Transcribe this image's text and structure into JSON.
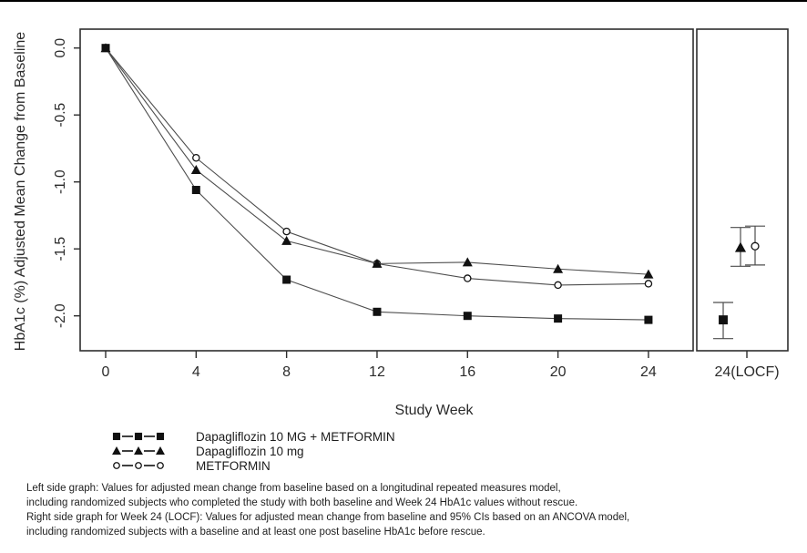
{
  "chart_data": {
    "type": "line",
    "title": "",
    "xlabel": "Study Week",
    "ylabel": "HbA1c (%) Adjusted Mean Change from Baseline",
    "x": [
      0,
      4,
      8,
      12,
      16,
      20,
      24
    ],
    "x_tick_labels": [
      "0",
      "4",
      "8",
      "12",
      "16",
      "20",
      "24"
    ],
    "locf_tick_label": "24(LOCF)",
    "y_ticks": [
      0.0,
      -0.5,
      -1.0,
      -1.5,
      -2.0
    ],
    "y_tick_labels": [
      "0.0",
      "-0.5",
      "-1.0",
      "-1.5",
      "-2.0"
    ],
    "ylim": [
      -2.26,
      0.14
    ],
    "grid": false,
    "legend_position": "bottom-left",
    "panels": [
      "longitudinal (weeks 0-24)",
      "Week 24 LOCF with 95% CI"
    ],
    "locf_x_offsets": [
      -21,
      -2,
      14
    ],
    "series": [
      {
        "name": "Dapagliflozin 10 MG + METFORMIN",
        "marker": "square",
        "values": [
          0.0,
          -1.06,
          -1.73,
          -1.97,
          -2.0,
          -2.02,
          -2.03
        ],
        "locf": {
          "value": -2.03,
          "ci_upper": -1.9,
          "ci_lower": -2.17
        }
      },
      {
        "name": "Dapagliflozin 10 mg",
        "marker": "triangle",
        "values": [
          0.0,
          -0.91,
          -1.44,
          -1.61,
          -1.6,
          -1.65,
          -1.69
        ],
        "locf": {
          "value": -1.49,
          "ci_upper": -1.34,
          "ci_lower": -1.63
        }
      },
      {
        "name": "METFORMIN",
        "marker": "circle",
        "values": [
          0.0,
          -0.82,
          -1.37,
          -1.61,
          -1.72,
          -1.77,
          -1.76
        ],
        "locf": {
          "value": -1.48,
          "ci_upper": -1.33,
          "ci_lower": -1.62
        }
      }
    ]
  },
  "footnotes": {
    "lines": [
      "Left side graph: Values for adjusted mean change from baseline based on a longitudinal repeated measures model,",
      "including randomized subjects who completed the study with both baseline and Week 24 HbA1c values without rescue.",
      "Right side graph for Week 24 (LOCF): Values for adjusted mean change from baseline and 95% CIs based on an ANCOVA model,",
      "including randomized subjects with a baseline and at least one post baseline HbA1c before rescue."
    ]
  },
  "colors": {
    "marker": "#111111",
    "line": "#4d4d4d",
    "box": "#2e2e2e",
    "text": "#2b2b2b",
    "image_top_border": "#000000"
  }
}
